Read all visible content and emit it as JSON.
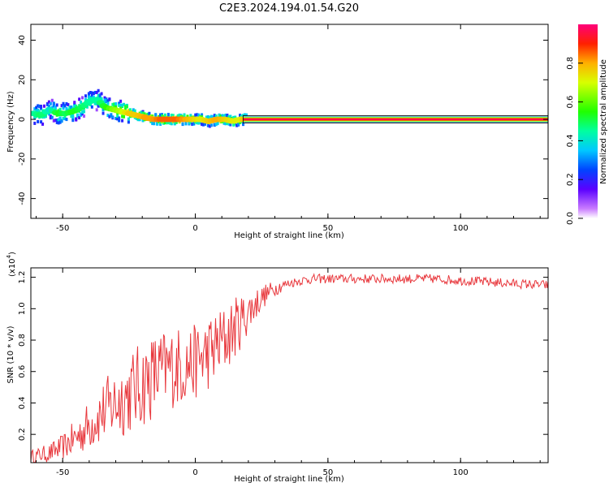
{
  "title": "C2E3.2024.194.01.54.G20",
  "colorbar": {
    "label": "Normalized spectral amplitude",
    "ticks": [
      "0.0",
      "0.2",
      "0.4",
      "0.6",
      "0.8"
    ],
    "tick_values": [
      0.0,
      0.2,
      0.4,
      0.6,
      0.8
    ]
  },
  "chart_data": [
    {
      "type": "heatmap",
      "xlabel": "Height of straight line (km)",
      "ylabel": "Frequency (Hz)",
      "xlim": [
        -62,
        133
      ],
      "ylim": [
        -50,
        48
      ],
      "x_ticks": [
        "-50",
        "0",
        "50",
        "100"
      ],
      "x_tick_values": [
        -50,
        0,
        50,
        100
      ],
      "y_ticks": [
        "-40",
        "-20",
        "0",
        "20",
        "40"
      ],
      "y_tick_values": [
        -40,
        -20,
        0,
        20,
        40
      ],
      "ridge": {
        "x": [
          -61,
          -58,
          -55,
          -52,
          -49,
          -46,
          -43,
          -40,
          -37,
          -34,
          -31,
          -28,
          -25,
          -22,
          -19,
          -16,
          -13,
          -10,
          -7,
          -4,
          -1,
          2,
          5,
          8,
          11,
          14,
          17,
          20,
          40,
          60,
          80,
          100,
          120,
          133
        ],
        "frequency": [
          3,
          2,
          5,
          3,
          3,
          4,
          6,
          9,
          10,
          6,
          5,
          4,
          3,
          2,
          1,
          0,
          0,
          0,
          0,
          0,
          0,
          0,
          -1,
          0,
          0,
          -1,
          0,
          0,
          0,
          0,
          0,
          0,
          0,
          0
        ],
        "amplitude": [
          0.5,
          0.55,
          0.45,
          0.6,
          0.55,
          0.6,
          0.55,
          0.5,
          0.5,
          0.6,
          0.7,
          0.75,
          0.85,
          0.85,
          0.9,
          0.9,
          0.95,
          0.95,
          0.95,
          0.9,
          0.85,
          0.8,
          0.85,
          0.9,
          0.85,
          0.8,
          0.8,
          0.95,
          0.95,
          0.95,
          0.95,
          0.95,
          0.95,
          0.95
        ]
      }
    },
    {
      "type": "line",
      "xlabel": "Height of straight line (km)",
      "ylabel": "SNR (10 * v/v)",
      "scale_label": "(x10",
      "scale_exponent": "4",
      "xlim": [
        -62,
        133
      ],
      "ylim": [
        0.02,
        1.26
      ],
      "x_ticks": [
        "-50",
        "0",
        "50",
        "100"
      ],
      "x_tick_values": [
        -50,
        0,
        50,
        100
      ],
      "y_ticks": [
        "0.2",
        "0.4",
        "0.6",
        "0.8",
        "1.0",
        "1.2"
      ],
      "y_tick_values": [
        0.2,
        0.4,
        0.6,
        0.8,
        1.0,
        1.2
      ],
      "series": [
        {
          "color": "#e8383d",
          "x": [
            -62,
            -55,
            -50,
            -45,
            -40,
            -35,
            -30,
            -25,
            -20,
            -15,
            -10,
            -5,
            0,
            5,
            10,
            15,
            20,
            25,
            30,
            35,
            40,
            45,
            50,
            60,
            70,
            80,
            90,
            100,
            110,
            120,
            133
          ],
          "y": [
            0.06,
            0.08,
            0.12,
            0.18,
            0.26,
            0.34,
            0.4,
            0.46,
            0.52,
            0.58,
            0.62,
            0.64,
            0.66,
            0.72,
            0.78,
            0.88,
            0.98,
            1.07,
            1.13,
            1.16,
            1.18,
            1.19,
            1.19,
            1.19,
            1.19,
            1.19,
            1.19,
            1.18,
            1.17,
            1.16,
            1.15
          ],
          "spread": [
            0.04,
            0.06,
            0.08,
            0.12,
            0.16,
            0.2,
            0.24,
            0.26,
            0.28,
            0.28,
            0.26,
            0.26,
            0.24,
            0.24,
            0.24,
            0.2,
            0.14,
            0.08,
            0.05,
            0.03,
            0.03,
            0.03,
            0.03,
            0.03,
            0.03,
            0.03,
            0.03,
            0.03,
            0.03,
            0.03,
            0.03
          ]
        }
      ]
    }
  ]
}
